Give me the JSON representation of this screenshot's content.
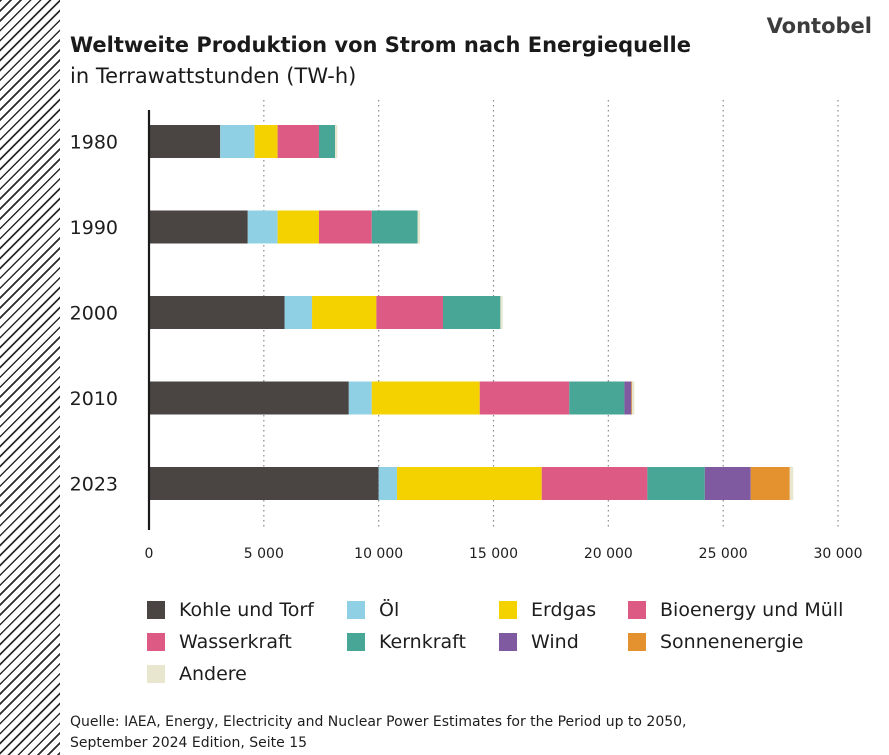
{
  "brand": "Vontobel",
  "title_line1": "Weltweite Produktion von Strom nach Energiequelle",
  "title_line2": "in Terrawattstunden (TW-h)",
  "source_line1": "Quelle: IAEA, Energy, Electricity and Nuclear Power Estimates for the Period up to 2050,",
  "source_line2": "September 2024 Edition, Seite 15",
  "chart_data": {
    "type": "bar",
    "orientation": "horizontal",
    "stacked": true,
    "title": "Weltweite Produktion von Strom nach Energiequelle in Terrawattstunden (TW-h)",
    "categories": [
      "1980",
      "1990",
      "2000",
      "2010",
      "2023"
    ],
    "xlim": [
      0,
      30000
    ],
    "xticks": [
      0,
      5000,
      10000,
      15000,
      20000,
      25000,
      30000
    ],
    "xtick_labels": [
      "0",
      "5 000",
      "10 000",
      "15 000",
      "20 000",
      "25 000",
      "30 000"
    ],
    "grid": "vertical dotted",
    "legend_position": "bottom",
    "series": [
      {
        "name": "Kohle und Torf",
        "color": "#4a4543",
        "values": [
          3100,
          4300,
          5900,
          8700,
          10000
        ]
      },
      {
        "name": "Öl",
        "color": "#90d0e4",
        "values": [
          1500,
          1300,
          1200,
          1000,
          800
        ]
      },
      {
        "name": "Erdgas",
        "color": "#f4d200",
        "values": [
          1000,
          1800,
          2800,
          4700,
          6300
        ]
      },
      {
        "name": "Bioenergy und Müll",
        "color": "#dc5a84",
        "values": [
          0,
          0,
          0,
          0,
          0
        ]
      },
      {
        "name": "Wasserkraft",
        "color": "#dc5a84",
        "values": [
          1800,
          2300,
          2900,
          3900,
          4600
        ]
      },
      {
        "name": "Kernkraft",
        "color": "#48a696",
        "values": [
          700,
          2000,
          2500,
          2400,
          2500
        ]
      },
      {
        "name": "Wind",
        "color": "#7f5aa0",
        "values": [
          0,
          0,
          0,
          300,
          2000
        ]
      },
      {
        "name": "Sonnenenergie",
        "color": "#e49230",
        "values": [
          0,
          0,
          0,
          30,
          1700
        ]
      },
      {
        "name": "Andere",
        "color": "#e9e6cf",
        "values": [
          100,
          100,
          100,
          100,
          150
        ]
      }
    ]
  }
}
